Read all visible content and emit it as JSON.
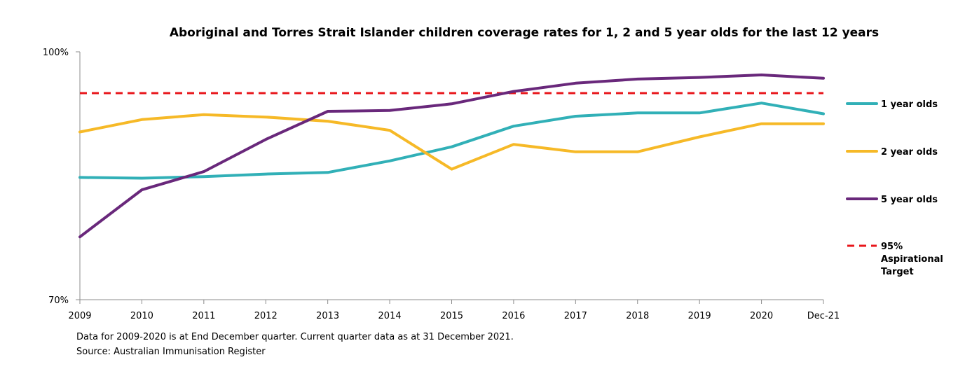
{
  "chart_data": {
    "type": "line",
    "title": "Aboriginal and Torres Strait Islander children coverage rates  for 1, 2 and 5 year olds for the last 12  years",
    "xlabel": "",
    "ylabel": "",
    "categories": [
      "2009",
      "2010",
      "2011",
      "2012",
      "2013",
      "2014",
      "2015",
      "2016",
      "2017",
      "2018",
      "2019",
      "2020",
      "Dec-21"
    ],
    "ylim": [
      70,
      100
    ],
    "ytick_labels": [
      "100%",
      "70%"
    ],
    "grid": false,
    "legend_position": "right",
    "series": [
      {
        "name": "1 year olds",
        "color": "#31B0B7",
        "values": [
          84.8,
          84.7,
          84.9,
          85.2,
          85.4,
          86.8,
          88.5,
          91.0,
          92.2,
          92.6,
          92.6,
          93.8,
          92.5
        ]
      },
      {
        "name": "2 year olds",
        "color": "#F6B927",
        "values": [
          90.3,
          91.8,
          92.4,
          92.1,
          91.6,
          90.5,
          85.8,
          88.8,
          87.9,
          87.9,
          89.7,
          91.3,
          91.3
        ]
      },
      {
        "name": "5 year olds",
        "color": "#69287B",
        "values": [
          77.6,
          83.3,
          85.5,
          89.4,
          92.8,
          92.9,
          93.7,
          95.2,
          96.2,
          96.7,
          96.9,
          97.2,
          96.8
        ]
      },
      {
        "name": "95%\nAspirational\nTarget",
        "color": "#E8161B",
        "dashed": true,
        "values": [
          95,
          95,
          95,
          95,
          95,
          95,
          95,
          95,
          95,
          95,
          95,
          95,
          95
        ]
      }
    ]
  },
  "footnotes": {
    "line1": "Data for 2009-2020 is at End December quarter. Current quarter data as at 31 December 2021.",
    "line2": "Source: Australian Immunisation Register"
  }
}
